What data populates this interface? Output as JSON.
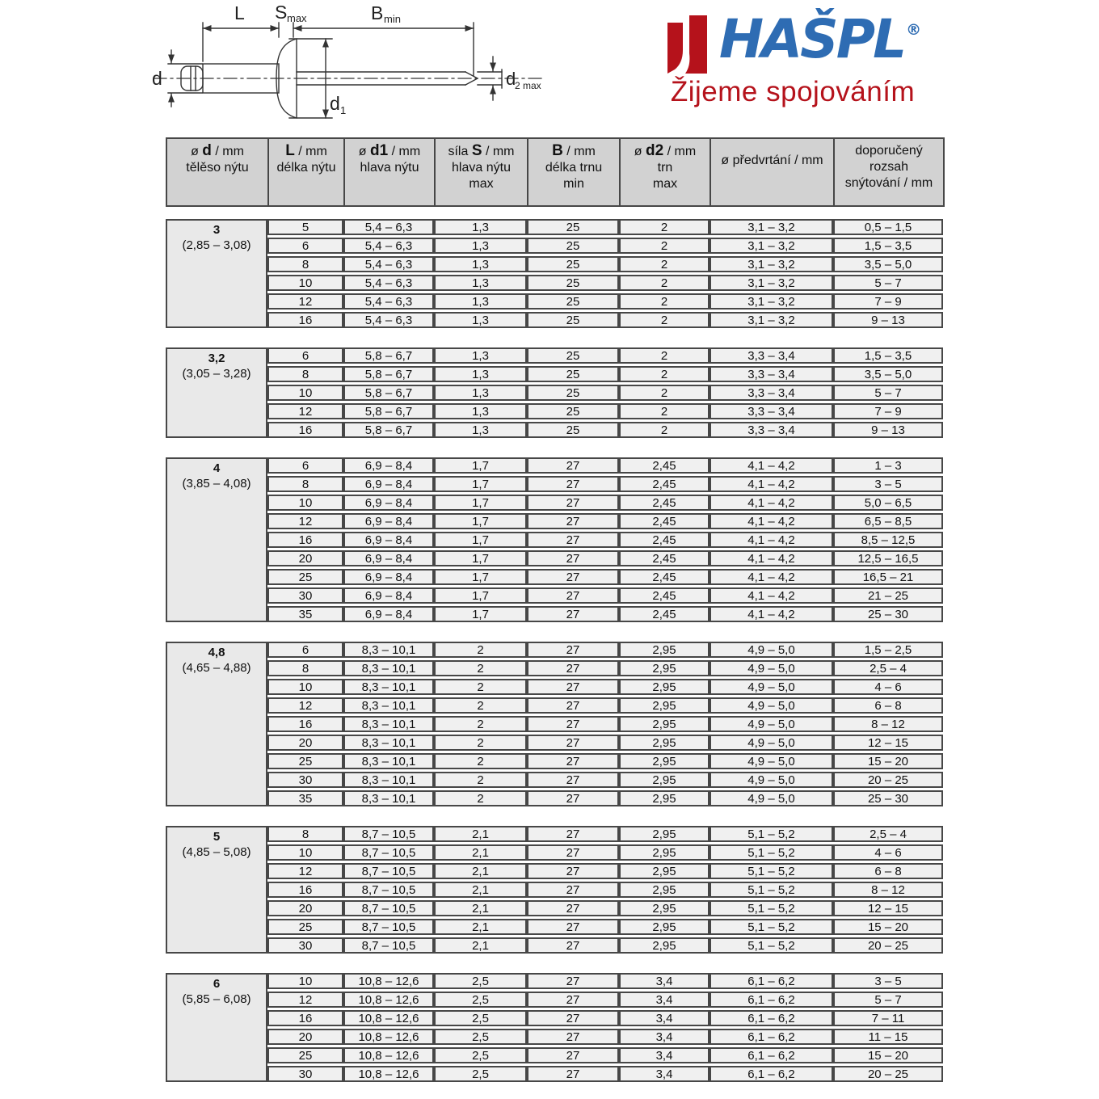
{
  "logo": {
    "name": "HAŠPL",
    "registered": "®",
    "tagline": "Žijeme spojováním",
    "brand_red": "#b5121b",
    "brand_blue": "#2e6cb3"
  },
  "diagram": {
    "dim_length": "L",
    "dim_s": "S",
    "dim_s_sub": "max",
    "dim_b": "B",
    "dim_b_sub": "min",
    "dim_d": "d",
    "dim_d1": "d",
    "dim_d1_sub": "1",
    "dim_d2": "d",
    "dim_d2_sub": "2 max"
  },
  "table": {
    "header": [
      {
        "pre": "ø ",
        "bold": "d",
        "post": " / mm",
        "sub": [
          "tělěso nýtu"
        ],
        "center": false
      },
      {
        "pre": "",
        "bold": "L",
        "post": " / mm",
        "sub": [
          "délka nýtu"
        ],
        "center": false
      },
      {
        "pre": "ø ",
        "bold": "d1",
        "post": " / mm",
        "sub": [
          "hlava nýtu"
        ],
        "center": false
      },
      {
        "pre": "síla ",
        "bold": "S",
        "post": " / mm",
        "sub": [
          "hlava nýtu",
          "max"
        ],
        "center": false
      },
      {
        "pre": "",
        "bold": "B",
        "post": " / mm",
        "sub": [
          "délka trnu",
          "min"
        ],
        "center": false
      },
      {
        "pre": "ø ",
        "bold": "d2",
        "post": " / mm",
        "sub": [
          "trn",
          "max"
        ],
        "center": false
      },
      {
        "pre": "ø předvrtání / mm",
        "bold": "",
        "post": "",
        "sub": [],
        "center": true
      },
      {
        "pre": "doporučený",
        "bold": "",
        "post": "",
        "sub": [
          "rozsah",
          "snýtování / mm"
        ],
        "center": false
      }
    ],
    "blocks": [
      {
        "d": "3",
        "range": "(2,85 – 3,08)",
        "rows": [
          [
            "5",
            "5,4 – 6,3",
            "1,3",
            "25",
            "2",
            "3,1 – 3,2",
            "0,5 – 1,5"
          ],
          [
            "6",
            "5,4 – 6,3",
            "1,3",
            "25",
            "2",
            "3,1 – 3,2",
            "1,5 – 3,5"
          ],
          [
            "8",
            "5,4 – 6,3",
            "1,3",
            "25",
            "2",
            "3,1 – 3,2",
            "3,5 – 5,0"
          ],
          [
            "10",
            "5,4 – 6,3",
            "1,3",
            "25",
            "2",
            "3,1 – 3,2",
            "5 – 7"
          ],
          [
            "12",
            "5,4 – 6,3",
            "1,3",
            "25",
            "2",
            "3,1 – 3,2",
            "7 – 9"
          ],
          [
            "16",
            "5,4 – 6,3",
            "1,3",
            "25",
            "2",
            "3,1 – 3,2",
            "9 – 13"
          ]
        ]
      },
      {
        "d": "3,2",
        "range": "(3,05 – 3,28)",
        "rows": [
          [
            "6",
            "5,8 – 6,7",
            "1,3",
            "25",
            "2",
            "3,3 – 3,4",
            "1,5 – 3,5"
          ],
          [
            "8",
            "5,8 – 6,7",
            "1,3",
            "25",
            "2",
            "3,3 – 3,4",
            "3,5 – 5,0"
          ],
          [
            "10",
            "5,8 – 6,7",
            "1,3",
            "25",
            "2",
            "3,3 – 3,4",
            "5 – 7"
          ],
          [
            "12",
            "5,8 – 6,7",
            "1,3",
            "25",
            "2",
            "3,3 – 3,4",
            "7 – 9"
          ],
          [
            "16",
            "5,8 – 6,7",
            "1,3",
            "25",
            "2",
            "3,3 – 3,4",
            "9 – 13"
          ]
        ]
      },
      {
        "d": "4",
        "range": "(3,85 – 4,08)",
        "rows": [
          [
            "6",
            "6,9 – 8,4",
            "1,7",
            "27",
            "2,45",
            "4,1 – 4,2",
            "1 – 3"
          ],
          [
            "8",
            "6,9 – 8,4",
            "1,7",
            "27",
            "2,45",
            "4,1 – 4,2",
            "3 – 5"
          ],
          [
            "10",
            "6,9 – 8,4",
            "1,7",
            "27",
            "2,45",
            "4,1 – 4,2",
            "5,0 – 6,5"
          ],
          [
            "12",
            "6,9 – 8,4",
            "1,7",
            "27",
            "2,45",
            "4,1 – 4,2",
            "6,5 – 8,5"
          ],
          [
            "16",
            "6,9 – 8,4",
            "1,7",
            "27",
            "2,45",
            "4,1 – 4,2",
            "8,5 – 12,5"
          ],
          [
            "20",
            "6,9 – 8,4",
            "1,7",
            "27",
            "2,45",
            "4,1 – 4,2",
            "12,5 – 16,5"
          ],
          [
            "25",
            "6,9 – 8,4",
            "1,7",
            "27",
            "2,45",
            "4,1 – 4,2",
            "16,5 – 21"
          ],
          [
            "30",
            "6,9 – 8,4",
            "1,7",
            "27",
            "2,45",
            "4,1 – 4,2",
            "21 – 25"
          ],
          [
            "35",
            "6,9 – 8,4",
            "1,7",
            "27",
            "2,45",
            "4,1 – 4,2",
            "25 – 30"
          ]
        ]
      },
      {
        "d": "4,8",
        "range": "(4,65 – 4,88)",
        "rows": [
          [
            "6",
            "8,3 – 10,1",
            "2",
            "27",
            "2,95",
            "4,9 – 5,0",
            "1,5 – 2,5"
          ],
          [
            "8",
            "8,3 – 10,1",
            "2",
            "27",
            "2,95",
            "4,9 – 5,0",
            "2,5 – 4"
          ],
          [
            "10",
            "8,3 – 10,1",
            "2",
            "27",
            "2,95",
            "4,9 – 5,0",
            "4 – 6"
          ],
          [
            "12",
            "8,3 – 10,1",
            "2",
            "27",
            "2,95",
            "4,9 – 5,0",
            "6 – 8"
          ],
          [
            "16",
            "8,3 – 10,1",
            "2",
            "27",
            "2,95",
            "4,9 – 5,0",
            "8 – 12"
          ],
          [
            "20",
            "8,3 – 10,1",
            "2",
            "27",
            "2,95",
            "4,9 – 5,0",
            "12 – 15"
          ],
          [
            "25",
            "8,3 – 10,1",
            "2",
            "27",
            "2,95",
            "4,9 – 5,0",
            "15 – 20"
          ],
          [
            "30",
            "8,3 – 10,1",
            "2",
            "27",
            "2,95",
            "4,9 – 5,0",
            "20 – 25"
          ],
          [
            "35",
            "8,3 – 10,1",
            "2",
            "27",
            "2,95",
            "4,9 – 5,0",
            "25 – 30"
          ]
        ]
      },
      {
        "d": "5",
        "range": "(4,85 – 5,08)",
        "rows": [
          [
            "8",
            "8,7 – 10,5",
            "2,1",
            "27",
            "2,95",
            "5,1 – 5,2",
            "2,5 – 4"
          ],
          [
            "10",
            "8,7 – 10,5",
            "2,1",
            "27",
            "2,95",
            "5,1 – 5,2",
            "4 – 6"
          ],
          [
            "12",
            "8,7 – 10,5",
            "2,1",
            "27",
            "2,95",
            "5,1 – 5,2",
            "6 – 8"
          ],
          [
            "16",
            "8,7 – 10,5",
            "2,1",
            "27",
            "2,95",
            "5,1 – 5,2",
            "8 – 12"
          ],
          [
            "20",
            "8,7 – 10,5",
            "2,1",
            "27",
            "2,95",
            "5,1 – 5,2",
            "12 – 15"
          ],
          [
            "25",
            "8,7 – 10,5",
            "2,1",
            "27",
            "2,95",
            "5,1 – 5,2",
            "15 – 20"
          ],
          [
            "30",
            "8,7 – 10,5",
            "2,1",
            "27",
            "2,95",
            "5,1 – 5,2",
            "20 – 25"
          ]
        ]
      },
      {
        "d": "6",
        "range": "(5,85 – 6,08)",
        "rows": [
          [
            "10",
            "10,8 – 12,6",
            "2,5",
            "27",
            "3,4",
            "6,1 – 6,2",
            "3 – 5"
          ],
          [
            "12",
            "10,8 – 12,6",
            "2,5",
            "27",
            "3,4",
            "6,1 – 6,2",
            "5 – 7"
          ],
          [
            "16",
            "10,8 – 12,6",
            "2,5",
            "27",
            "3,4",
            "6,1 – 6,2",
            "7 – 11"
          ],
          [
            "20",
            "10,8 – 12,6",
            "2,5",
            "27",
            "3,4",
            "6,1 – 6,2",
            "11 – 15"
          ],
          [
            "25",
            "10,8 – 12,6",
            "2,5",
            "27",
            "3,4",
            "6,1 – 6,2",
            "15 – 20"
          ],
          [
            "30",
            "10,8 – 12,6",
            "2,5",
            "27",
            "3,4",
            "6,1 – 6,2",
            "20 – 25"
          ]
        ]
      }
    ]
  }
}
